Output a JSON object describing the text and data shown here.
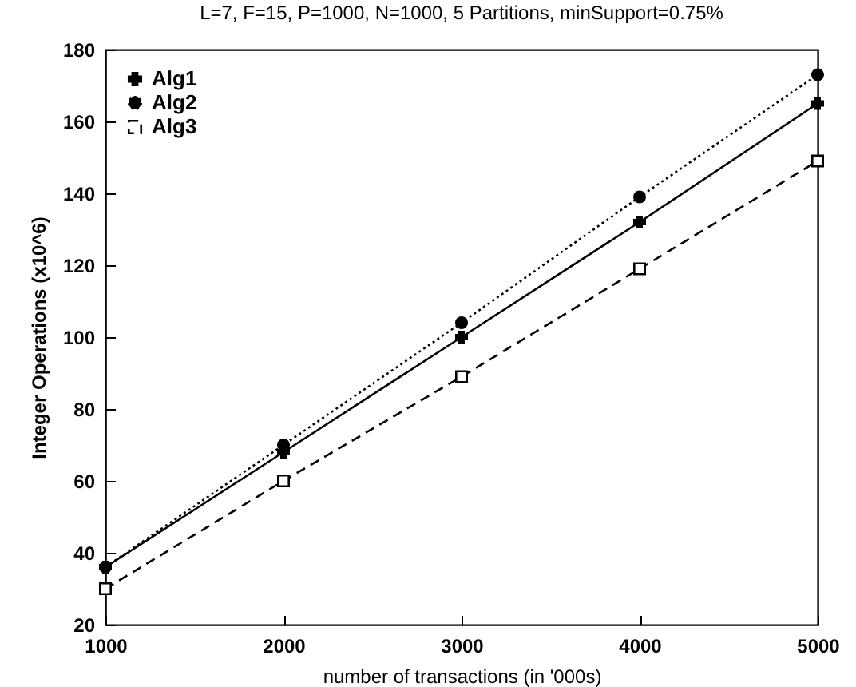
{
  "chart_data": {
    "type": "line",
    "title": "L=7, F=15, P=1000, N=1000, 5 Partitions, minSupport=0.75%",
    "xlabel": "number of transactions (in '000s)",
    "ylabel": "Integer Operations (x10^6)",
    "x": [
      1000,
      2000,
      3000,
      4000,
      5000
    ],
    "series": [
      {
        "name": "Alg1",
        "color": "#000000",
        "marker": "cross",
        "line_style": "solid",
        "values": [
          36,
          68,
          100,
          132,
          165
        ]
      },
      {
        "name": "Alg2",
        "color": "#000000",
        "marker": "circle",
        "line_style": "dotted",
        "values": [
          36,
          70,
          104,
          139,
          173
        ]
      },
      {
        "name": "Alg3",
        "color": "#000000",
        "marker": "square",
        "line_style": "dashed",
        "values": [
          30,
          60,
          89,
          119,
          149
        ]
      }
    ],
    "xlim": [
      1000,
      5000
    ],
    "xticks": [
      1000,
      2000,
      3000,
      4000,
      5000
    ],
    "ylim": [
      20,
      180
    ],
    "yticks": [
      20,
      40,
      60,
      80,
      100,
      120,
      140,
      160,
      180
    ],
    "grid": false,
    "legend": "top left"
  }
}
